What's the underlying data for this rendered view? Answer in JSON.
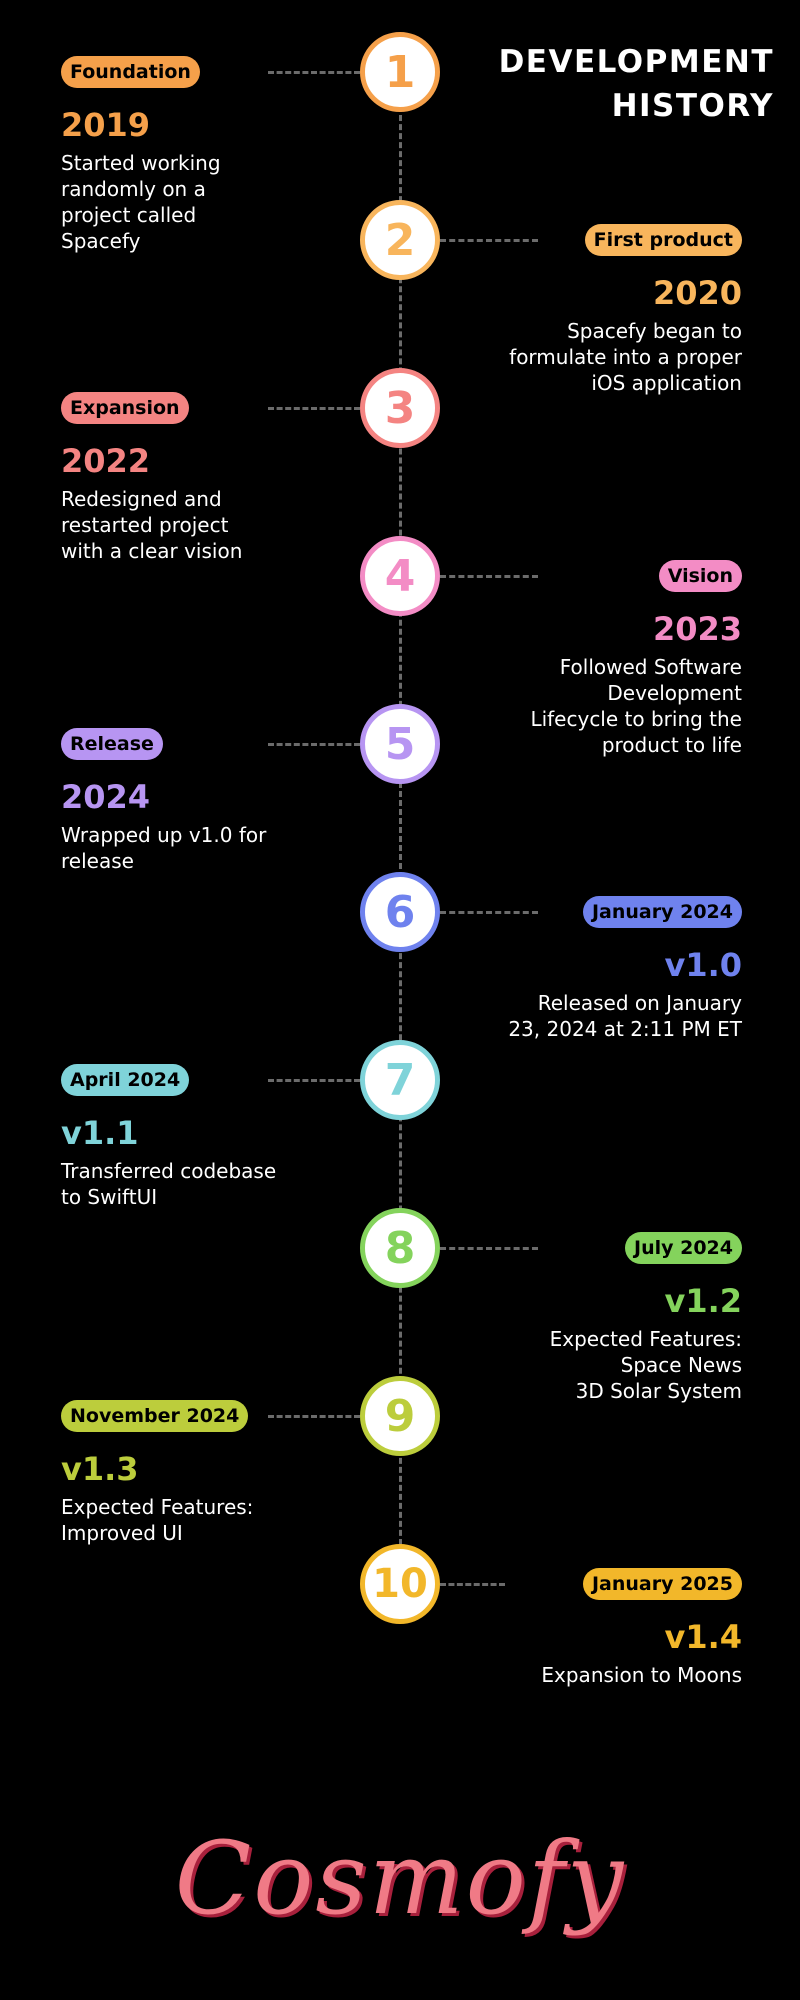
{
  "title_line1": "DEVELOPMENT",
  "title_line2": "HISTORY",
  "logo": "Cosmofy",
  "milestones": [
    {
      "number": "1",
      "badge": "Foundation",
      "heading": "2019",
      "desc": [
        "Started working",
        "randomly on a",
        "project called",
        "Spacefy"
      ],
      "color": "#f5a04a"
    },
    {
      "number": "2",
      "badge": "First product",
      "heading": "2020",
      "desc": [
        "Spacefy began to",
        "formulate into a proper",
        "iOS application"
      ],
      "color": "#f8b55c"
    },
    {
      "number": "3",
      "badge": "Expansion",
      "heading": "2022",
      "desc": [
        "Redesigned and",
        "restarted project",
        "with a clear vision"
      ],
      "color": "#f48482"
    },
    {
      "number": "4",
      "badge": "Vision",
      "heading": "2023",
      "desc": [
        "Followed Software",
        "Development",
        "Lifecycle to bring the",
        "product to life"
      ],
      "color": "#f38cc5"
    },
    {
      "number": "5",
      "badge": "Release",
      "heading": "2024",
      "desc": [
        "Wrapped up v1.0 for",
        "release"
      ],
      "color": "#b795f2"
    },
    {
      "number": "6",
      "badge": "January 2024",
      "heading": "v1.0",
      "desc": [
        "Released on January",
        "23, 2024 at 2:11 PM ET"
      ],
      "color": "#6f82ee"
    },
    {
      "number": "7",
      "badge": "April 2024",
      "heading": "v1.1",
      "desc": [
        "Transferred codebase",
        "to SwiftUI"
      ],
      "color": "#7fd3d9"
    },
    {
      "number": "8",
      "badge": "July 2024",
      "heading": "v1.2",
      "desc": [
        "Expected Features:",
        "Space News",
        "3D Solar System"
      ],
      "color": "#84d35c"
    },
    {
      "number": "9",
      "badge": "November 2024",
      "heading": "v1.3",
      "desc": [
        "Expected Features:",
        "Improved UI"
      ],
      "color": "#bccd3c"
    },
    {
      "number": "10",
      "badge": "January 2025",
      "heading": "v1.4",
      "desc": [
        "Expansion to Moons"
      ],
      "color": "#f2b72a"
    }
  ]
}
